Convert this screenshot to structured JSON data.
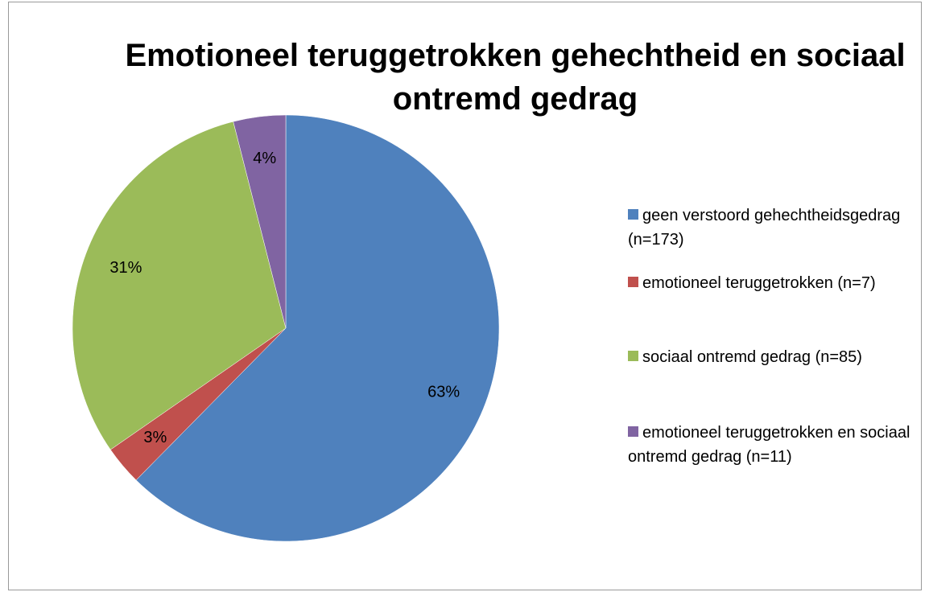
{
  "chart_data": {
    "type": "pie",
    "title": "Emotioneel teruggetrokken gehechtheid en sociaal ontremd gedrag",
    "categories": [
      "geen verstoord gehechtheidsgedrag (n=173)",
      "emotioneel teruggetrokken (n=7)",
      "sociaal ontremd gedrag (n=85)",
      "emotioneel teruggetrokken en sociaal ontremd gedrag (n=11)"
    ],
    "values": [
      63,
      3,
      31,
      4
    ],
    "value_labels": [
      "63%",
      "3%",
      "31%",
      "4%"
    ],
    "colors": [
      "#4f81bd",
      "#c0504d",
      "#9bbb59",
      "#8064a2"
    ],
    "legend": "right"
  }
}
